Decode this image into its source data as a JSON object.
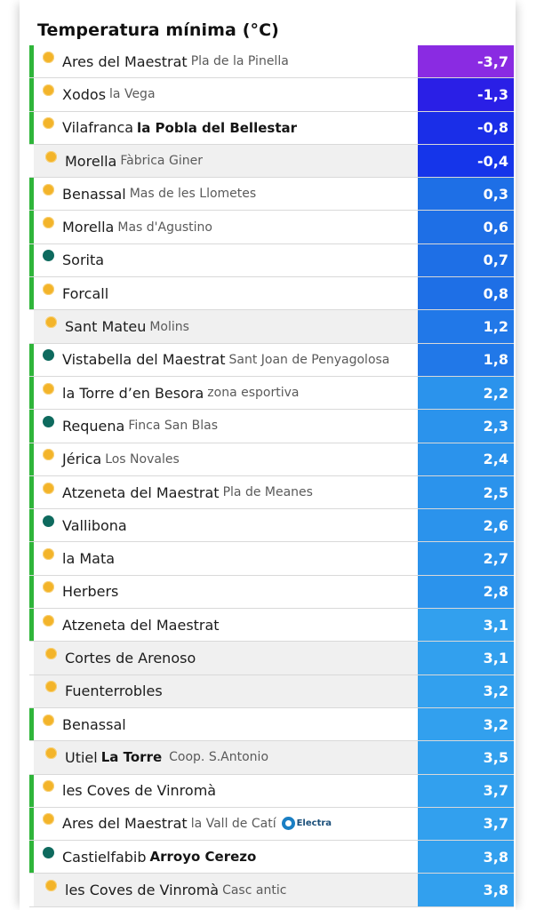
{
  "title": "Temperatura mínima (°C)",
  "colors": {
    "accent_bar": "#2fb53a",
    "sun_icon": "#f3b42a",
    "station_icon": "#0e6a5e"
  },
  "rows": [
    {
      "name": "Ares del Maestrat",
      "sub": "Pla de la Pinella",
      "sub_bold": false,
      "icon": "sun-icon",
      "value": "-3,7",
      "bar": true,
      "shade": false,
      "color": "#8a2be2"
    },
    {
      "name": "Xodos",
      "sub": "la Vega",
      "sub_bold": false,
      "icon": "sun-icon",
      "value": "-1,3",
      "bar": true,
      "shade": false,
      "color": "#2a1fe6"
    },
    {
      "name": "Vilafranca",
      "sub": "la Pobla del Bellestar",
      "sub_bold": true,
      "icon": "sun-icon",
      "value": "-0,8",
      "bar": true,
      "shade": false,
      "color": "#1a2ee8"
    },
    {
      "name": "Morella",
      "sub": "Fàbrica Giner",
      "sub_bold": false,
      "icon": "sun-icon",
      "value": "-0,4",
      "bar": false,
      "shade": true,
      "color": "#1535ea"
    },
    {
      "name": "Benassal",
      "sub": "Mas de les Llometes",
      "sub_bold": false,
      "icon": "sun-icon",
      "value": "0,3",
      "bar": true,
      "shade": false,
      "color": "#1e6fe6"
    },
    {
      "name": "Morella",
      "sub": "Mas d'Agustino",
      "sub_bold": false,
      "icon": "sun-icon",
      "value": "0,6",
      "bar": true,
      "shade": false,
      "color": "#1e6fe6"
    },
    {
      "name": "Sorita",
      "sub": "",
      "sub_bold": false,
      "icon": "station-icon",
      "value": "0,7",
      "bar": true,
      "shade": false,
      "color": "#1e6fe6"
    },
    {
      "name": "Forcall",
      "sub": "",
      "sub_bold": false,
      "icon": "sun-icon",
      "value": "0,8",
      "bar": true,
      "shade": false,
      "color": "#1e6fe6"
    },
    {
      "name": "Sant Mateu",
      "sub": "Molins",
      "sub_bold": false,
      "icon": "sun-icon",
      "value": "1,2",
      "bar": false,
      "shade": true,
      "color": "#2178e8"
    },
    {
      "name": "Vistabella del Maestrat",
      "sub": "Sant Joan de Penyagolosa",
      "sub_bold": false,
      "icon": "station-icon",
      "value": "1,8",
      "bar": true,
      "shade": false,
      "color": "#2178e8"
    },
    {
      "name": "la Torre d’en Besora",
      "sub": "zona esportiva",
      "sub_bold": false,
      "icon": "sun-icon",
      "value": "2,2",
      "bar": true,
      "shade": false,
      "color": "#2b93ec"
    },
    {
      "name": "Requena",
      "sub": "Finca San Blas",
      "sub_bold": false,
      "icon": "station-icon",
      "value": "2,3",
      "bar": true,
      "shade": false,
      "color": "#2b93ec"
    },
    {
      "name": "Jérica",
      "sub": "Los Novales",
      "sub_bold": false,
      "icon": "sun-icon",
      "value": "2,4",
      "bar": true,
      "shade": false,
      "color": "#2b93ec"
    },
    {
      "name": "Atzeneta del Maestrat",
      "sub": "Pla de Meanes",
      "sub_bold": false,
      "icon": "sun-icon",
      "value": "2,5",
      "bar": true,
      "shade": false,
      "color": "#2b93ec"
    },
    {
      "name": "Vallibona",
      "sub": "",
      "sub_bold": false,
      "icon": "station-icon",
      "value": "2,6",
      "bar": true,
      "shade": false,
      "color": "#2b93ec"
    },
    {
      "name": "la Mata",
      "sub": "",
      "sub_bold": false,
      "icon": "sun-icon",
      "value": "2,7",
      "bar": true,
      "shade": false,
      "color": "#2b93ec"
    },
    {
      "name": "Herbers",
      "sub": "",
      "sub_bold": false,
      "icon": "sun-icon",
      "value": "2,8",
      "bar": true,
      "shade": false,
      "color": "#2b93ec"
    },
    {
      "name": "Atzeneta del Maestrat",
      "sub": "",
      "sub_bold": false,
      "icon": "sun-icon",
      "value": "3,1",
      "bar": true,
      "shade": false,
      "color": "#32a0ee"
    },
    {
      "name": "Cortes de Arenoso",
      "sub": "",
      "sub_bold": false,
      "icon": "sun-icon",
      "value": "3,1",
      "bar": false,
      "shade": true,
      "color": "#32a0ee"
    },
    {
      "name": "Fuenterrobles",
      "sub": "",
      "sub_bold": false,
      "icon": "sun-icon",
      "value": "3,2",
      "bar": false,
      "shade": true,
      "color": "#32a0ee"
    },
    {
      "name": "Benassal",
      "sub": "",
      "sub_bold": false,
      "icon": "sun-icon",
      "value": "3,2",
      "bar": true,
      "shade": false,
      "color": "#32a0ee"
    },
    {
      "name": "Utiel",
      "sub": "La Torre",
      "sub_bold": true,
      "sub2": "Coop. S.Antonio",
      "icon": "sun-icon",
      "value": "3,5",
      "bar": false,
      "shade": true,
      "color": "#32a0ee"
    },
    {
      "name": "les Coves de Vinromà",
      "sub": "",
      "sub_bold": false,
      "icon": "sun-icon",
      "value": "3,7",
      "bar": true,
      "shade": false,
      "color": "#32a0ee"
    },
    {
      "name": "Ares del Maestrat",
      "sub": "la Vall de Catí",
      "sub_bold": false,
      "logo": "Electra",
      "icon": "sun-icon",
      "value": "3,7",
      "bar": true,
      "shade": false,
      "color": "#32a0ee"
    },
    {
      "name": "Castielfabib",
      "sub": "Arroyo Cerezo",
      "sub_bold": true,
      "icon": "station-icon",
      "value": "3,8",
      "bar": true,
      "shade": false,
      "color": "#32a0ee"
    },
    {
      "name": "les Coves de Vinromà",
      "sub": "Casc antic",
      "sub_bold": false,
      "icon": "sun-icon",
      "value": "3,8",
      "bar": false,
      "shade": true,
      "color": "#32a0ee"
    }
  ]
}
